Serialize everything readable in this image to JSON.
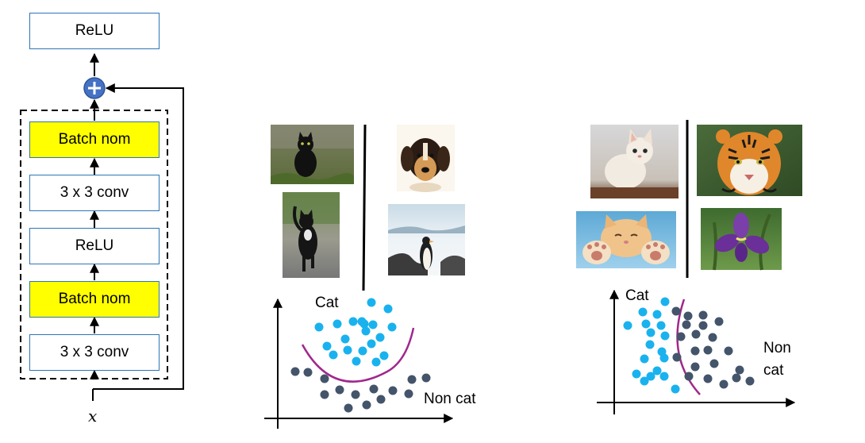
{
  "resblock": {
    "top_block": "ReLU",
    "blocks": [
      "Batch nom",
      "3 x 3 conv",
      "ReLU",
      "Batch nom",
      "3 x 3 conv"
    ],
    "input_label": "x",
    "colors": {
      "border": "#2e75b6",
      "highlight": "#ffff00",
      "plus": "#4472c4"
    }
  },
  "panel1": {
    "images": [
      "black-cat-in-grass-photo",
      "puppy-photo",
      "black-cat-walking-photo",
      "penguin-photo"
    ],
    "cat_label": "Cat",
    "noncat_label": "Non cat",
    "colors": {
      "cat_dots": "#1ab2ee",
      "noncat_dots": "#44546a",
      "boundary": "#a0288c"
    }
  },
  "panel2": {
    "images": [
      "kitten-photo",
      "tiger-photo",
      "cat-paws-photo",
      "iris-flower-photo"
    ],
    "cat_label": "Cat",
    "noncat_label_line1": "Non",
    "noncat_label_line2": "cat"
  }
}
